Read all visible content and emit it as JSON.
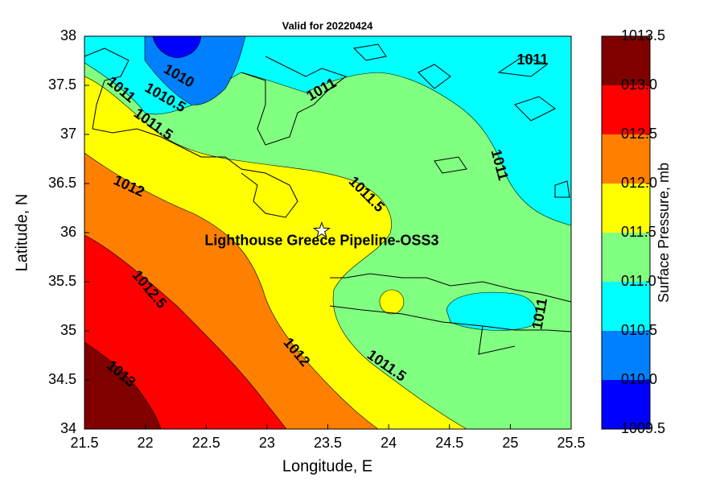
{
  "chart_data": {
    "type": "filled-contour-map",
    "title": "Valid for 20220424",
    "xlabel": "Longitude, E",
    "ylabel": "Latitude, N",
    "xlim": [
      21.5,
      25.5
    ],
    "ylim": [
      34,
      38
    ],
    "xticks": [
      21.5,
      22,
      22.5,
      23,
      23.5,
      24,
      24.5,
      25,
      25.5
    ],
    "yticks": [
      34,
      34.5,
      35,
      35.5,
      36,
      36.5,
      37,
      37.5,
      38
    ],
    "colorbar": {
      "label": "Surface Pressure, mb",
      "lim": [
        1009.5,
        1013.5
      ],
      "ticks": [
        1009.5,
        {
          "value": 1010,
          "label": "010.0"
        },
        {
          "value": 1010.5,
          "label": "010.5"
        },
        {
          "value": 1011,
          "label": "011.0"
        },
        {
          "value": 1011.5,
          "label": "011.5"
        },
        {
          "value": 1012,
          "label": "012.0"
        },
        {
          "value": 1012.5,
          "label": "012.5"
        },
        {
          "value": 1013,
          "label": "013.0"
        },
        1013.5
      ],
      "colors": [
        "#0000ff",
        "#0080ff",
        "#00ffff",
        "#80ff80",
        "#ffff00",
        "#ff8000",
        "#ff0000",
        "#800000"
      ]
    },
    "contour_labels": [
      "1010",
      "1010.5",
      "1011",
      "1011.5",
      "1011",
      "1011",
      "1011",
      "1012",
      "1011.5",
      "1012.5",
      "1013",
      "1012",
      "1011.5",
      "1011"
    ],
    "station": {
      "name": "Lighthouse Greece Pipeline-OSS3",
      "lon": 23.45,
      "lat": 36.02
    }
  }
}
